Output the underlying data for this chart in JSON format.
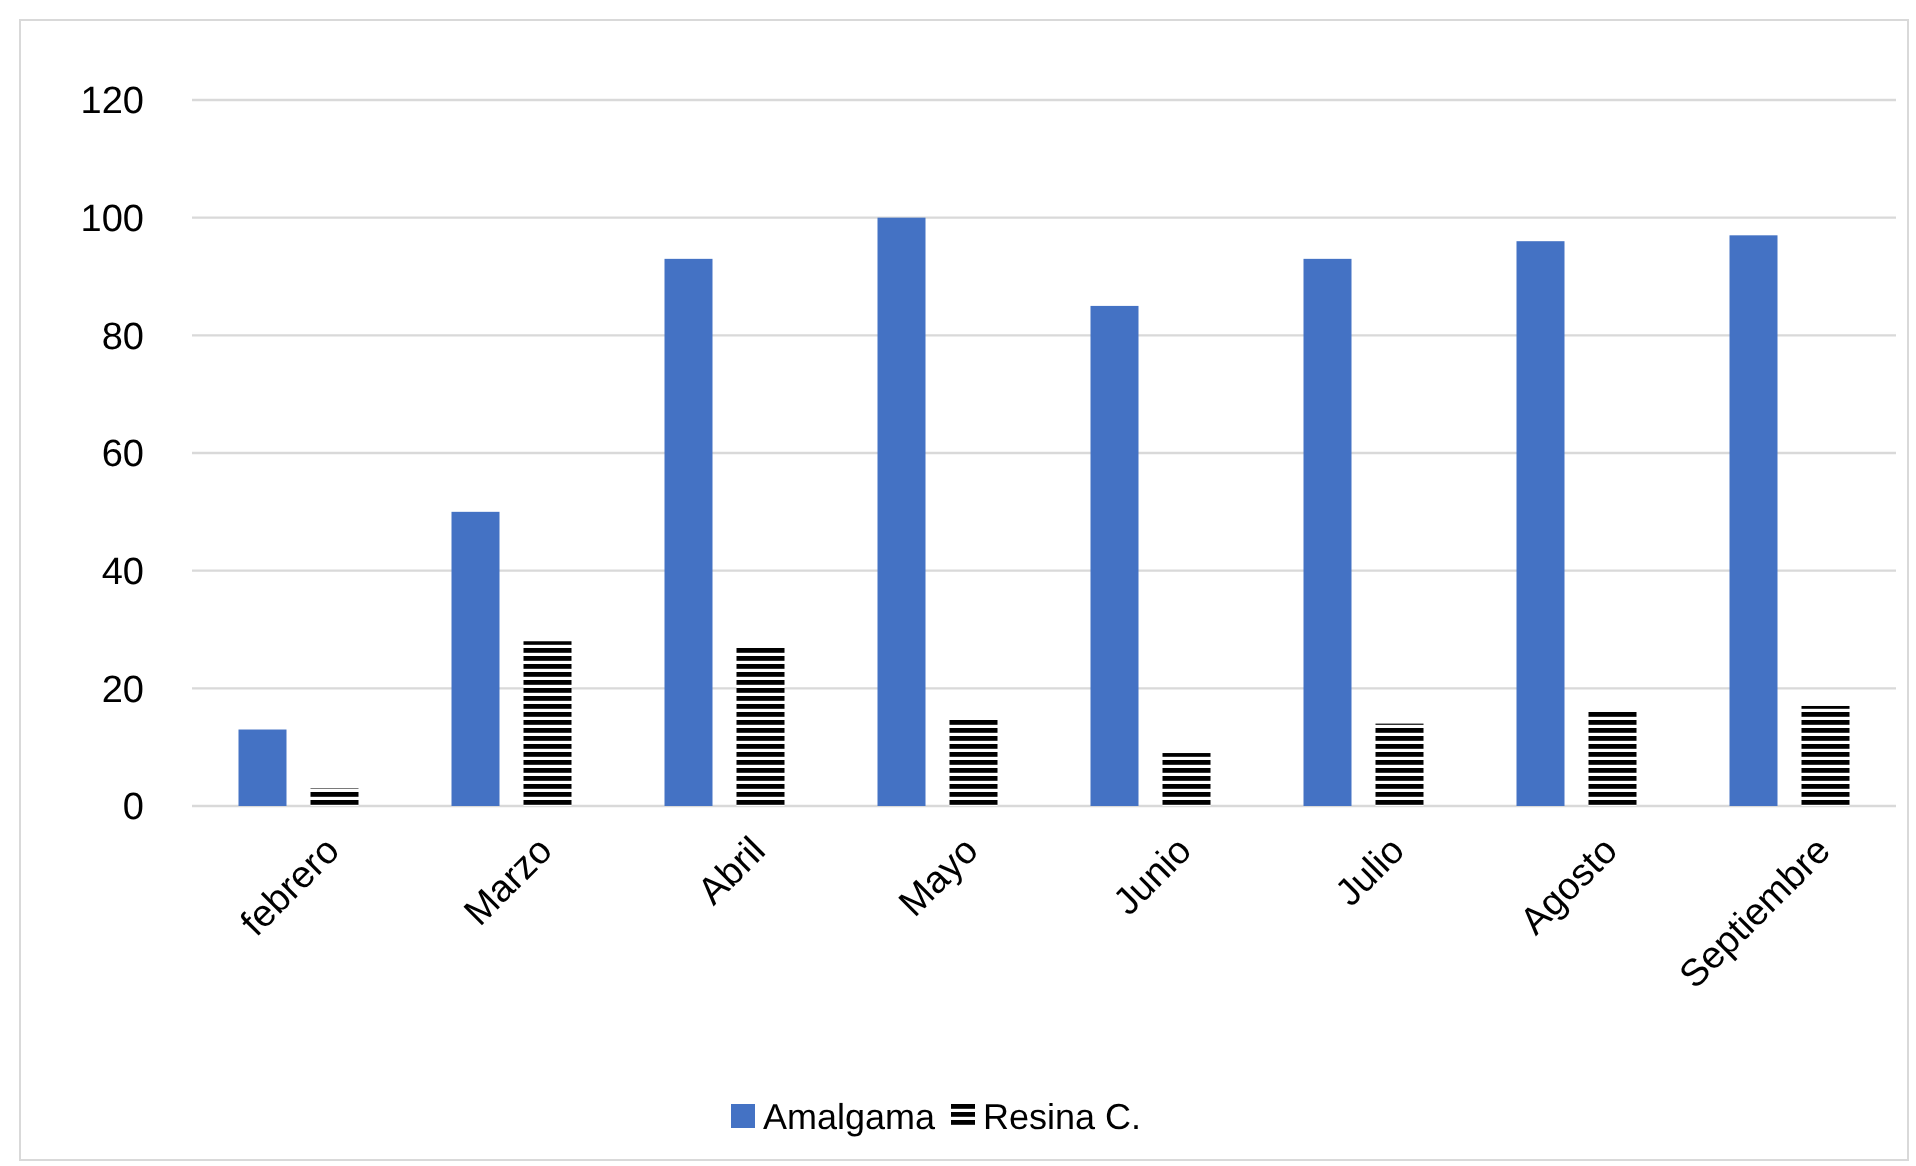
{
  "chart_data": {
    "type": "bar",
    "categories": [
      "febrero",
      "Marzo",
      "Abril",
      "Mayo",
      "Junio",
      "Julio",
      "Agosto",
      "Septiembre"
    ],
    "series": [
      {
        "name": "Amalgama",
        "color": "#4472c4",
        "values": [
          13,
          50,
          93,
          100,
          85,
          93,
          96,
          97
        ]
      },
      {
        "name": "Resina C.",
        "color": "#000000",
        "values": [
          3,
          28,
          27,
          15,
          9,
          14,
          16,
          17
        ]
      }
    ],
    "ylim": [
      0,
      120
    ],
    "yticks": [
      0,
      20,
      40,
      60,
      80,
      100,
      120
    ],
    "grid": "y",
    "legend": "bottom"
  }
}
